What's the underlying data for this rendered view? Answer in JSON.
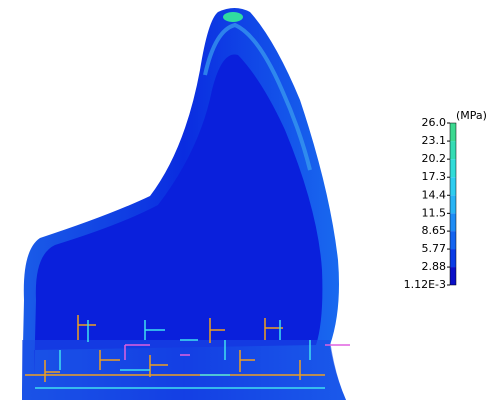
{
  "chart_data": {
    "type": "contour",
    "colorbar": {
      "label": "(MPa)",
      "lim": [
        0.00112,
        26.0
      ],
      "ticks": [
        {
          "value": 26.0,
          "label": "26.0"
        },
        23.1,
        20.2,
        17.3,
        14.4,
        11.5,
        8.65,
        5.77,
        2.88,
        {
          "value": 0.00112,
          "label": "1.12E-3"
        }
      ],
      "colors": [
        "#0a10c8",
        "#0a3ce6",
        "#1464f0",
        "#1e8cf5",
        "#28b4f5",
        "#2dcdf0",
        "#30dcd8",
        "#34dcb4",
        "#3cd890"
      ]
    }
  }
}
